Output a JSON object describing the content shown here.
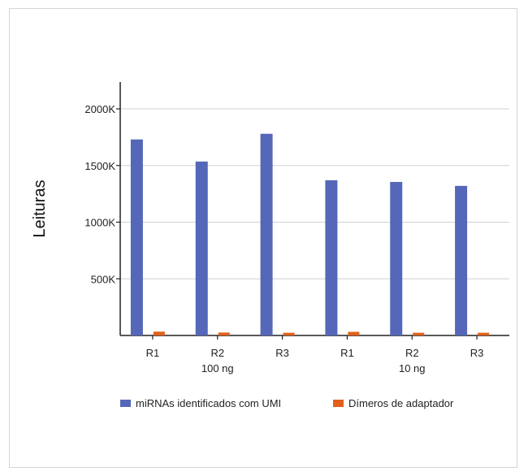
{
  "chart_data": {
    "type": "bar",
    "title": "",
    "xlabel": "",
    "ylabel": "Leituras",
    "ylim": [
      0,
      2000000
    ],
    "yticks": [
      {
        "value": 500000,
        "label": "500K"
      },
      {
        "value": 1000000,
        "label": "1000K"
      },
      {
        "value": 1500000,
        "label": "1500K"
      },
      {
        "value": 2000000,
        "label": "2000K"
      }
    ],
    "categories": [
      "R1",
      "R2",
      "R3",
      "R1",
      "R2",
      "R3"
    ],
    "groups": [
      {
        "label": "100 ng",
        "categories": [
          "R1",
          "R2",
          "R3"
        ]
      },
      {
        "label": "10 ng",
        "categories": [
          "R1",
          "R2",
          "R3"
        ]
      }
    ],
    "series": [
      {
        "name": "miRNAs identificados com UMI",
        "color": "#5467b8",
        "values": [
          1730000,
          1535000,
          1780000,
          1370000,
          1355000,
          1320000
        ]
      },
      {
        "name": "Dímeros de adaptador",
        "color": "#e2601b",
        "values": [
          34000,
          26000,
          24000,
          32000,
          24000,
          24000
        ]
      }
    ],
    "grid": true,
    "legend_position": "bottom"
  }
}
